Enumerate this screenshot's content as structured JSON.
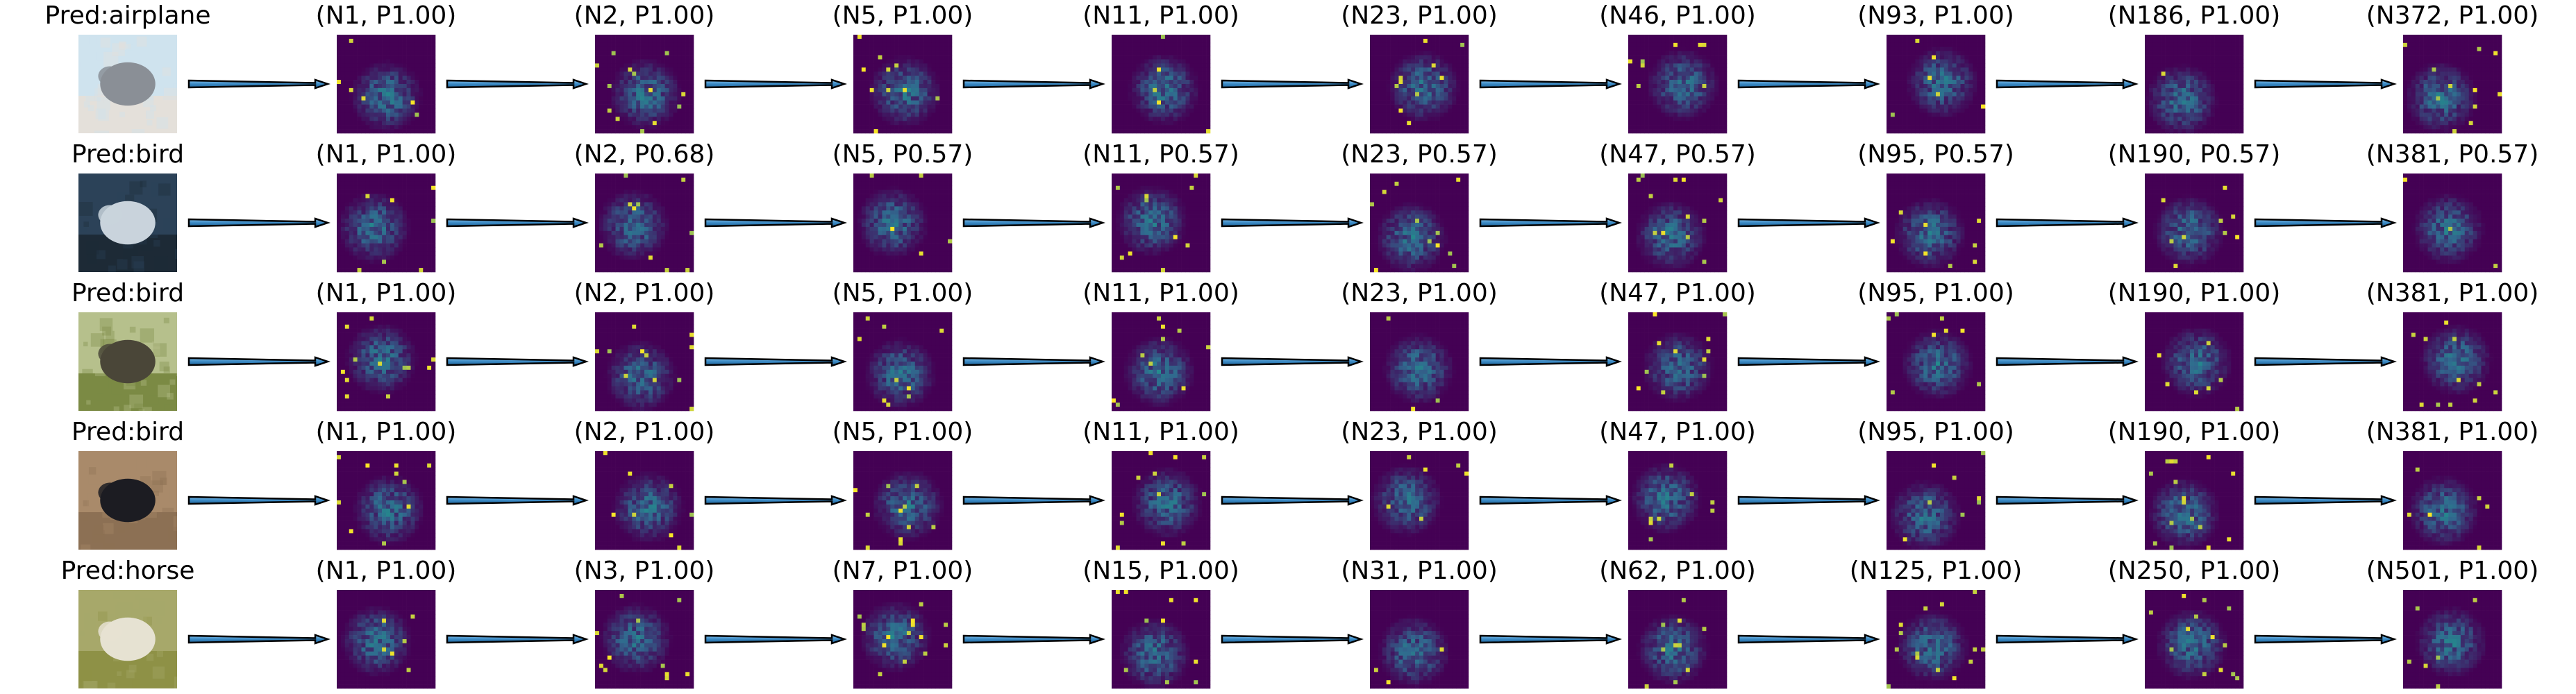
{
  "figure": {
    "rows": [
      {
        "prediction": "Pred:airplane",
        "thumbnail_colors": {
          "sky": "#cfe3ee",
          "subject": "#8a8f96",
          "ground": "#e4e0da"
        },
        "steps": [
          "(N1, P1.00)",
          "(N2, P1.00)",
          "(N5, P1.00)",
          "(N11, P1.00)",
          "(N23, P1.00)",
          "(N46, P1.00)",
          "(N93, P1.00)",
          "(N186, P1.00)",
          "(N372, P1.00)"
        ]
      },
      {
        "prediction": "Pred:bird",
        "thumbnail_colors": {
          "sky": "#2c4258",
          "subject": "#c9d3dc",
          "ground": "#1d2a36"
        },
        "steps": [
          "(N1, P1.00)",
          "(N2, P0.68)",
          "(N5, P0.57)",
          "(N11, P0.57)",
          "(N23, P0.57)",
          "(N47, P0.57)",
          "(N95, P0.57)",
          "(N190, P0.57)",
          "(N381, P0.57)"
        ]
      },
      {
        "prediction": "Pred:bird",
        "thumbnail_colors": {
          "sky": "#b6c08c",
          "subject": "#4a4638",
          "ground": "#7b8a44"
        },
        "steps": [
          "(N1, P1.00)",
          "(N2, P1.00)",
          "(N5, P1.00)",
          "(N11, P1.00)",
          "(N23, P1.00)",
          "(N47, P1.00)",
          "(N95, P1.00)",
          "(N190, P1.00)",
          "(N381, P1.00)"
        ]
      },
      {
        "prediction": "Pred:bird",
        "thumbnail_colors": {
          "sky": "#a98a6a",
          "subject": "#1c1c22",
          "ground": "#8c7054"
        },
        "steps": [
          "(N1, P1.00)",
          "(N2, P1.00)",
          "(N5, P1.00)",
          "(N11, P1.00)",
          "(N23, P1.00)",
          "(N47, P1.00)",
          "(N95, P1.00)",
          "(N190, P1.00)",
          "(N381, P1.00)"
        ]
      },
      {
        "prediction": "Pred:horse",
        "thumbnail_colors": {
          "sky": "#a7a86a",
          "subject": "#e6e2d2",
          "ground": "#8e9146"
        },
        "steps": [
          "(N1, P1.00)",
          "(N3, P1.00)",
          "(N7, P1.00)",
          "(N15, P1.00)",
          "(N31, P1.00)",
          "(N62, P1.00)",
          "(N125, P1.00)",
          "(N250, P1.00)",
          "(N501, P1.00)"
        ]
      }
    ],
    "colors": {
      "heatmap_low": "#440154",
      "heatmap_mid": "#31688e",
      "heatmap_mid2": "#21918c",
      "heatmap_high": "#fde725",
      "arrow_fill": "#3a89c4",
      "arrow_edge": "#000000",
      "text": "#000000"
    }
  }
}
